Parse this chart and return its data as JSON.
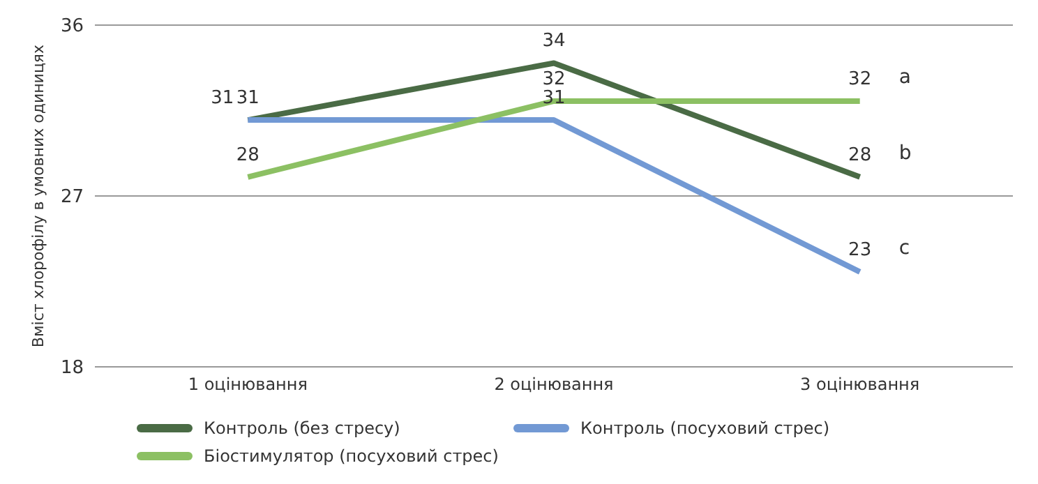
{
  "chart_data": {
    "type": "line",
    "ylabel": "Вміст хлорофілу в умовних одиницях",
    "categories": [
      "1 оцінювання",
      "2 оцінювання",
      "3 оцінювання"
    ],
    "series": [
      {
        "name": "Контроль (без стресу)",
        "color": "#4a6b45",
        "values": [
          31,
          34,
          28
        ]
      },
      {
        "name": "Контроль (посуховий стрес)",
        "color": "#7299d4",
        "values": [
          31,
          31,
          23
        ]
      },
      {
        "name": "Біостимулятор (посуховий стрес)",
        "color": "#8cc063",
        "values": [
          28,
          32,
          32
        ]
      }
    ],
    "ylim": [
      18,
      36
    ],
    "yticks": [
      18,
      27,
      36
    ],
    "grid": "y",
    "legend": "bottom",
    "data_labels": true,
    "marker": "none",
    "line_style": "solid",
    "annotations": [
      {
        "text": "a",
        "x": "3 оцінювання",
        "y": 32
      },
      {
        "text": "b",
        "x": "3 оцінювання",
        "y": 28
      },
      {
        "text": "c",
        "x": "3 оцінювання",
        "y": 23
      }
    ]
  }
}
